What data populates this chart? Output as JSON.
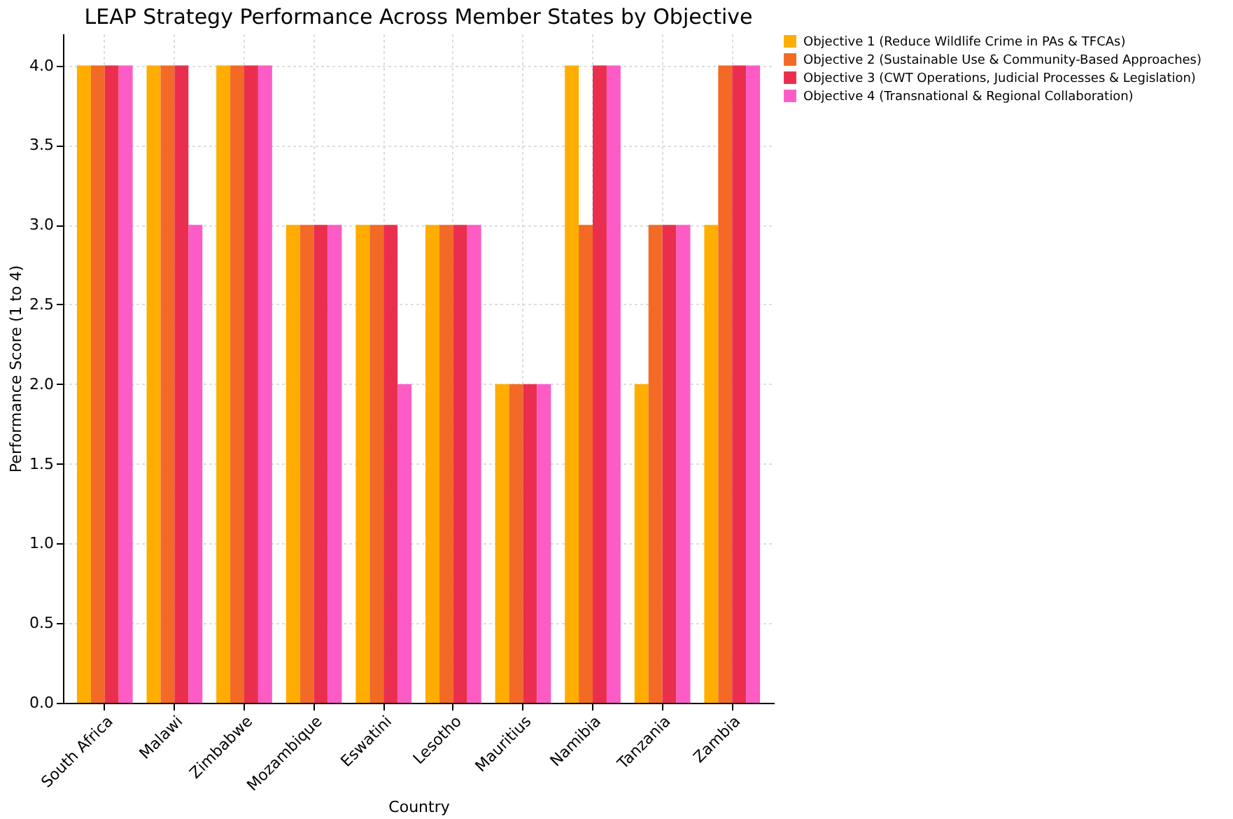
{
  "chart_data": {
    "type": "bar",
    "title": "LEAP Strategy Performance Across Member States by Objective",
    "xlabel": "Country",
    "ylabel": "Performance Score (1 to 4)",
    "categories": [
      "South Africa",
      "Malawi",
      "Zimbabwe",
      "Mozambique",
      "Eswatini",
      "Lesotho",
      "Mauritius",
      "Namibia",
      "Tanzania",
      "Zambia"
    ],
    "series": [
      {
        "name": "Objective 1 (Reduce Wildlife Crime in PAs & TFCAs)",
        "color": "#ffad00",
        "values": [
          4,
          4,
          4,
          3,
          3,
          3,
          2,
          4,
          2,
          3
        ]
      },
      {
        "name": "Objective 2 (Sustainable Use & Community-Based Approaches)",
        "color": "#f26a25",
        "values": [
          4,
          4,
          4,
          3,
          3,
          3,
          2,
          3,
          3,
          4
        ]
      },
      {
        "name": "Objective 3 (CWT Operations, Judicial Processes & Legislation)",
        "color": "#ea2f4e",
        "values": [
          4,
          4,
          4,
          3,
          3,
          3,
          2,
          4,
          3,
          4
        ]
      },
      {
        "name": "Objective 4 (Transnational & Regional Collaboration)",
        "color": "#fd5cc6",
        "values": [
          4,
          3,
          4,
          3,
          2,
          3,
          2,
          4,
          3,
          4
        ]
      }
    ],
    "ylim": [
      0,
      4.2
    ],
    "yticks": [
      {
        "value": 0,
        "label": "0.0"
      },
      {
        "value": 0.5,
        "label": "0.5"
      },
      {
        "value": 1,
        "label": "1.0"
      },
      {
        "value": 1.5,
        "label": "1.5"
      },
      {
        "value": 2,
        "label": "2.0"
      },
      {
        "value": 2.5,
        "label": "2.5"
      },
      {
        "value": 3,
        "label": "3.0"
      },
      {
        "value": 3.5,
        "label": "3.5"
      },
      {
        "value": 4,
        "label": "4.0"
      }
    ],
    "grid": true,
    "legend": "top right"
  }
}
